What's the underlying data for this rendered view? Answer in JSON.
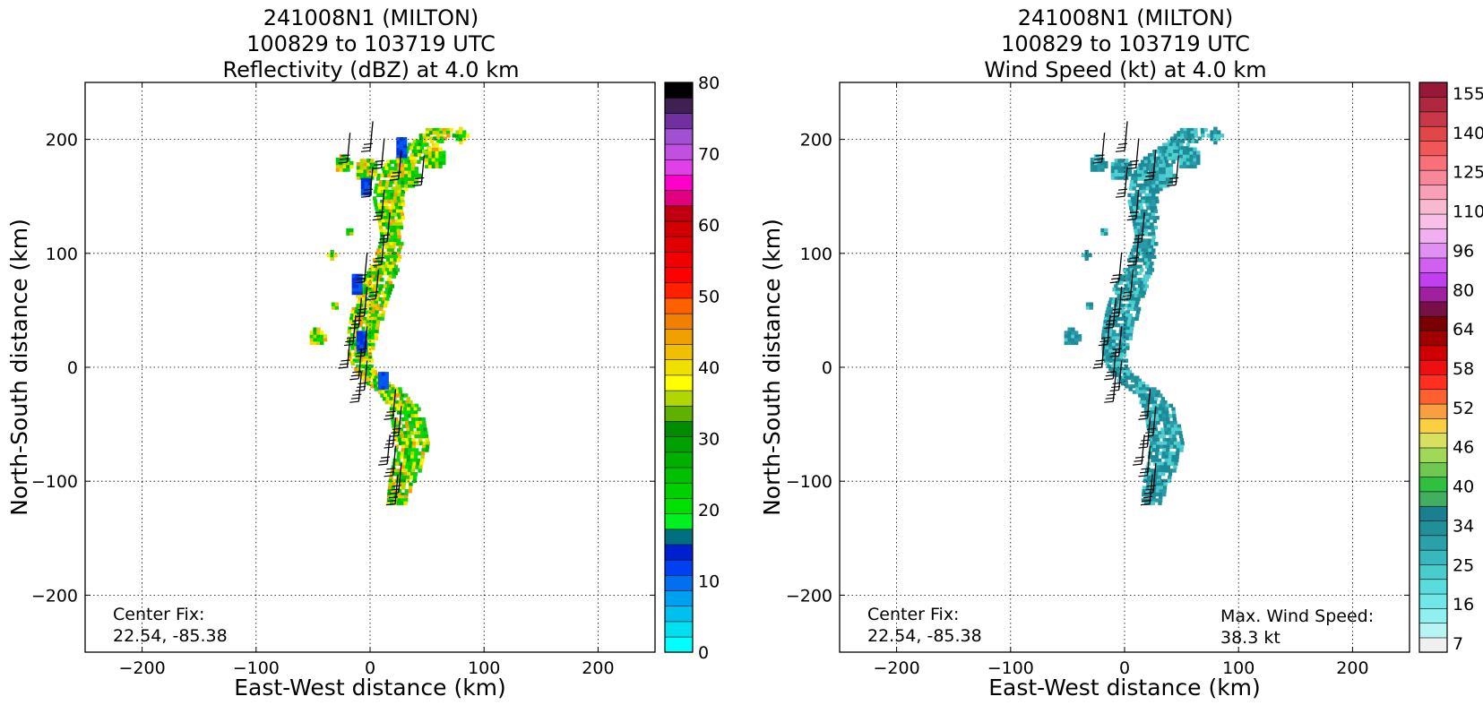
{
  "chart_data": [
    {
      "type": "heatmap",
      "title_lines": [
        "241008N1 (MILTON)",
        "100829 to 103719 UTC",
        "Reflectivity (dBZ) at 4.0 km"
      ],
      "xlabel": "East-West distance (km)",
      "ylabel": "North-South distance (km)",
      "xlim": [
        -250,
        250
      ],
      "ylim": [
        -250,
        250
      ],
      "xticks": [
        -200,
        -100,
        0,
        100,
        200
      ],
      "yticks": [
        -200,
        -100,
        0,
        100,
        200
      ],
      "grid": true,
      "annotation_left": [
        "Center Fix:",
        "22.54, -85.38"
      ],
      "colorbar": {
        "vmin": 0,
        "vmax": 80,
        "tick_values": [
          0,
          10,
          20,
          30,
          40,
          50,
          60,
          70,
          80
        ],
        "tick_labels": [
          "0",
          "10",
          "20",
          "30",
          "40",
          "50",
          "60",
          "70",
          "80"
        ],
        "colors": [
          "#00ffff",
          "#00e0f0",
          "#00c0f0",
          "#00a0f0",
          "#0070f0",
          "#0040f0",
          "#0020d0",
          "#007080",
          "#00f020",
          "#00e000",
          "#00d000",
          "#00c000",
          "#00b000",
          "#00a000",
          "#008c00",
          "#60b000",
          "#b0d800",
          "#ffff00",
          "#f0e000",
          "#f0c000",
          "#f0a000",
          "#f08000",
          "#ff6000",
          "#ff2000",
          "#ff0000",
          "#f00000",
          "#e00000",
          "#d00000",
          "#c00010",
          "#e00080",
          "#ff00c8",
          "#e040e8",
          "#c050e0",
          "#a050d0",
          "#7030a0",
          "#402050",
          "#000000"
        ]
      },
      "field": {
        "spine": [
          [
            210,
            60
          ],
          [
            200,
            50
          ],
          [
            185,
            30
          ],
          [
            170,
            20
          ],
          [
            150,
            15
          ],
          [
            130,
            17
          ],
          [
            110,
            17
          ],
          [
            90,
            12
          ],
          [
            70,
            3
          ],
          [
            50,
            -3
          ],
          [
            30,
            -8
          ],
          [
            10,
            -10
          ],
          [
            0,
            -6
          ],
          [
            -10,
            3
          ],
          [
            -20,
            18
          ],
          [
            -35,
            30
          ],
          [
            -50,
            33
          ],
          [
            -65,
            36
          ],
          [
            -80,
            33
          ],
          [
            -95,
            28
          ],
          [
            -110,
            24
          ],
          [
            -120,
            22
          ]
        ],
        "blobs": [
          [
            180,
            -25,
            8
          ],
          [
            175,
            -5,
            10
          ],
          [
            170,
            30,
            12
          ],
          [
            185,
            55,
            10
          ],
          [
            205,
            78,
            6
          ],
          [
            120,
            -20,
            4
          ],
          [
            100,
            -35,
            3
          ],
          [
            55,
            -33,
            4
          ],
          [
            28,
            -48,
            8
          ]
        ],
        "palette": [
          "#00c800",
          "#00d800",
          "#00e000",
          "#00b000",
          "#1fc81f",
          "#fff000",
          "#f0e000",
          "#e8c800",
          "#f0a000",
          "#b0d800"
        ],
        "barb_positions": [
          [
            190,
            0
          ],
          [
            180,
            -20
          ],
          [
            175,
            10
          ],
          [
            165,
            25
          ],
          [
            160,
            45
          ],
          [
            150,
            0
          ],
          [
            130,
            10
          ],
          [
            110,
            15
          ],
          [
            90,
            10
          ],
          [
            75,
            -5
          ],
          [
            60,
            5
          ],
          [
            45,
            -5
          ],
          [
            35,
            -10
          ],
          [
            20,
            -15
          ],
          [
            10,
            -5
          ],
          [
            0,
            -20
          ],
          [
            -10,
            -10
          ],
          [
            -20,
            -5
          ],
          [
            -30,
            -10
          ],
          [
            -45,
            20
          ],
          [
            -60,
            25
          ],
          [
            -70,
            20
          ],
          [
            -85,
            15
          ],
          [
            -95,
            20
          ],
          [
            -110,
            25
          ],
          [
            -120,
            22
          ]
        ]
      }
    },
    {
      "type": "heatmap",
      "title_lines": [
        "241008N1 (MILTON)",
        "100829 to 103719 UTC",
        "Wind Speed (kt) at 4.0 km"
      ],
      "xlabel": "East-West distance (km)",
      "ylabel": "North-South distance (km)",
      "xlim": [
        -250,
        250
      ],
      "ylim": [
        -250,
        250
      ],
      "xticks": [
        -200,
        -100,
        0,
        100,
        200
      ],
      "yticks": [
        -200,
        -100,
        0,
        100,
        200
      ],
      "grid": true,
      "annotation_left": [
        "Center Fix:",
        "22.54, -85.38"
      ],
      "annotation_right": [
        "Max. Wind Speed:",
        "38.3 kt"
      ],
      "colorbar": {
        "tick_labels": [
          "7",
          "16",
          "25",
          "34",
          "40",
          "46",
          "52",
          "58",
          "64",
          "80",
          "96",
          "110",
          "125",
          "140",
          "155"
        ],
        "colors": [
          "#f0f0f0",
          "#b8f4f4",
          "#90f0f0",
          "#70e8e8",
          "#58dcdc",
          "#48cccc",
          "#38b8bc",
          "#2aa0a8",
          "#209098",
          "#1a8090",
          "#40b060",
          "#30c040",
          "#70c850",
          "#a0d858",
          "#d8e060",
          "#f8d040",
          "#f8a040",
          "#ff6030",
          "#ff3020",
          "#ee1010",
          "#d00000",
          "#a00000",
          "#780000",
          "#781048",
          "#a020a0",
          "#c040f0",
          "#d060f0",
          "#e090f0",
          "#f0b0f0",
          "#f8c0e8",
          "#f8b8d0",
          "#f8a0b8",
          "#f88898",
          "#f87078",
          "#f05858",
          "#e04848",
          "#c83848",
          "#b02840",
          "#981838"
        ]
      },
      "field": {
        "palette": [
          "#1a8a98",
          "#1e9098",
          "#208898",
          "#2a9aa8",
          "#48c8cc",
          "#50d0d0"
        ]
      }
    }
  ]
}
